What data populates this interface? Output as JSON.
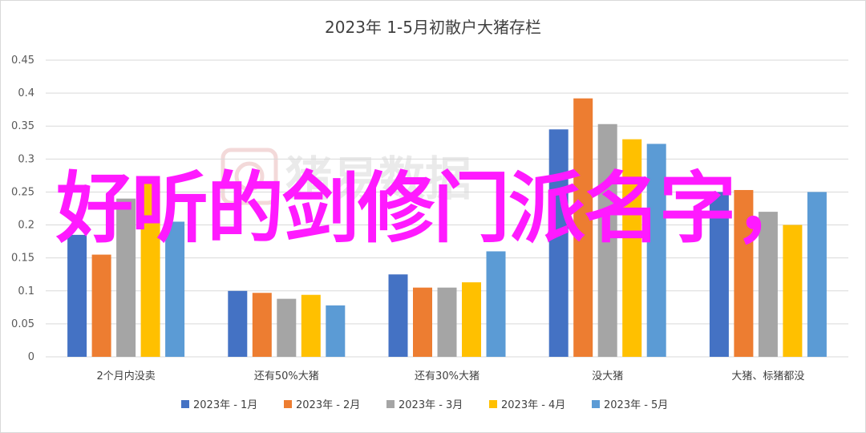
{
  "overlay_caption": "好听的剑修门派名字，",
  "watermark": "猪易数据",
  "colors": {
    "series": [
      "#4472c4",
      "#ed7d31",
      "#a5a5a5",
      "#ffc000",
      "#5b9bd5"
    ],
    "grid": "#d9d9d9",
    "overlay": "#ff1aff"
  },
  "chart_data": {
    "type": "bar",
    "title": "2023年 1-5月初散户大猪存栏",
    "categories": [
      "2个月内没卖",
      "还有50%大猪",
      "还有30%大猪",
      "没大猪",
      "大猪、标猪都没"
    ],
    "yticks": [
      "0",
      "0.05",
      "0.1",
      "0.15",
      "0.2",
      "0.25",
      "0.3",
      "0.35",
      "0.4",
      "0.45"
    ],
    "ylim": [
      0,
      0.45
    ],
    "grid": true,
    "legend_position": "bottom",
    "series": [
      {
        "name": "2023年 - 1月",
        "values": [
          0.185,
          0.1,
          0.125,
          0.345,
          0.25
        ]
      },
      {
        "name": "2023年 - 2月",
        "values": [
          0.155,
          0.097,
          0.105,
          0.392,
          0.253
        ]
      },
      {
        "name": "2023年 - 3月",
        "values": [
          0.24,
          0.088,
          0.105,
          0.353,
          0.22
        ]
      },
      {
        "name": "2023年 - 4月",
        "values": [
          0.263,
          0.094,
          0.113,
          0.33,
          0.2
        ]
      },
      {
        "name": "2023年 - 5月",
        "values": [
          0.205,
          0.078,
          0.16,
          0.323,
          0.25
        ]
      }
    ]
  }
}
